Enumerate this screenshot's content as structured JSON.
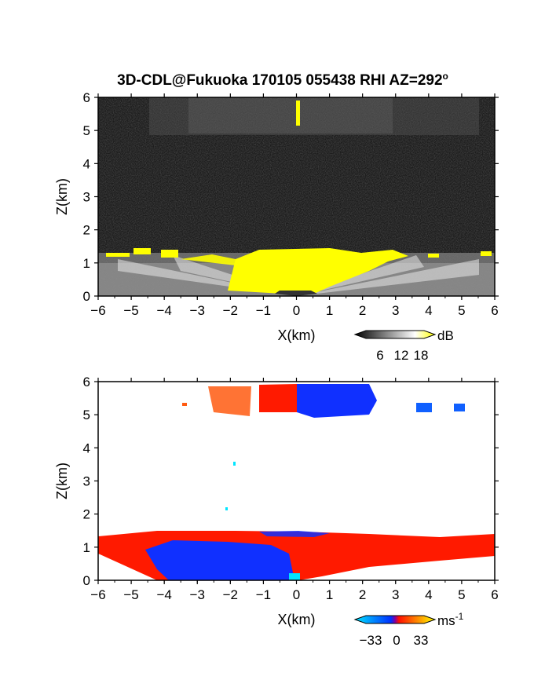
{
  "title": "3D-CDL@Fukuoka 170105 055438 RHI AZ=292",
  "title_sup": "o",
  "chart_data": [
    {
      "type": "heatmap",
      "name": "reflectivity",
      "xlabel": "X(km)",
      "ylabel": "Z(km)",
      "xlim": [
        -6,
        6
      ],
      "ylim": [
        0,
        6
      ],
      "xticks": [
        "-6",
        "-5",
        "-4",
        "-3",
        "-2",
        "-1",
        "0",
        "1",
        "2",
        "3",
        "4",
        "5",
        "6"
      ],
      "yticks": [
        "0",
        "1",
        "2",
        "3",
        "4",
        "5",
        "6"
      ],
      "grid": false,
      "colorbar": {
        "unit": "dB",
        "ticks": [
          "6",
          "12",
          "18"
        ],
        "colors": [
          "#000000",
          "#ffffff",
          "#ffff00"
        ]
      },
      "features": {
        "boundary_layer_top_km": 1.25,
        "upper_layer_km": [
          5.0,
          6.0
        ]
      }
    },
    {
      "type": "heatmap",
      "name": "doppler_velocity",
      "xlabel": "X(km)",
      "ylabel": "Z(km)",
      "xlim": [
        -6,
        6
      ],
      "ylim": [
        0,
        6
      ],
      "xticks": [
        "-6",
        "-5",
        "-4",
        "-3",
        "-2",
        "-1",
        "0",
        "1",
        "2",
        "3",
        "4",
        "5",
        "6"
      ],
      "yticks": [
        "0",
        "1",
        "2",
        "3",
        "4",
        "5",
        "6"
      ],
      "grid": false,
      "colorbar": {
        "unit": "ms",
        "unit_sup": "-1",
        "ticks": [
          "-33",
          "0",
          "33"
        ],
        "colors": [
          "#00e5ff",
          "#0040ff",
          "#ff2000",
          "#ffff00"
        ]
      },
      "features": {
        "boundary_layer_top_km": 1.3,
        "upper_layer_km": [
          4.9,
          6.0
        ],
        "approaching_color": "#1030ff",
        "receding_color": "#ff1a00"
      }
    }
  ]
}
